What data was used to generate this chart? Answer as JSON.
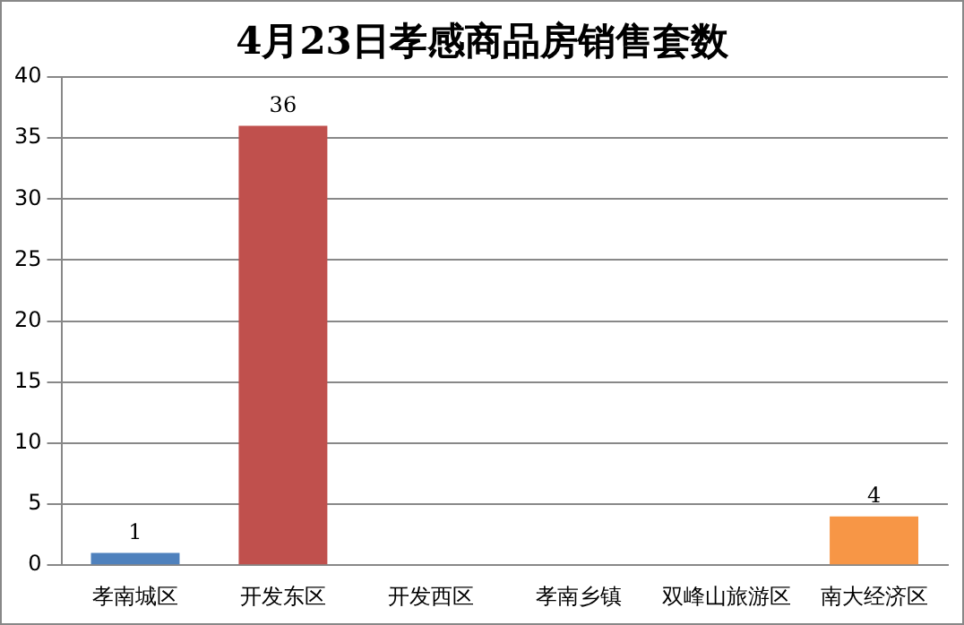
{
  "chart_data": {
    "type": "bar",
    "title": "4月23日孝感商品房销售套数",
    "categories": [
      "孝南城区",
      "开发东区",
      "开发西区",
      "孝南乡镇",
      "双峰山旅游区",
      "南大经济区"
    ],
    "values": [
      1,
      36,
      0,
      0,
      0,
      4
    ],
    "colors": [
      "#4f81bd",
      "#c0504d",
      "#9bbb59",
      "#8064a2",
      "#4bacc6",
      "#f79646"
    ],
    "value_labels": [
      "1",
      "36",
      null,
      null,
      null,
      "4"
    ],
    "ylim": [
      0,
      40
    ],
    "yticks": [
      0,
      5,
      10,
      15,
      20,
      25,
      30,
      35,
      40
    ],
    "grid": "y",
    "legend": false
  }
}
